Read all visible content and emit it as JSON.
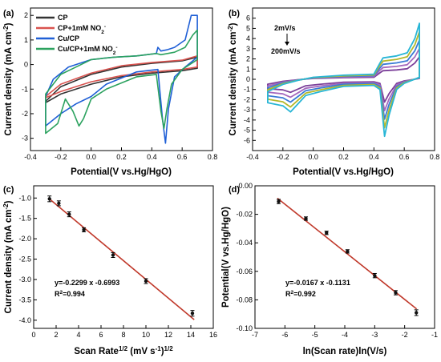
{
  "colors": {
    "axis": "#000000",
    "fit_line": "#c0392b",
    "points": "#111111"
  },
  "chart_data": [
    {
      "panel": "(a)",
      "type": "line",
      "xlabel": "Potential(V vs.Hg/HgO)",
      "ylabel": "Current density (mA cm^-2)",
      "xlim": [
        -0.4,
        0.8
      ],
      "ylim": [
        -3.5,
        2.3
      ],
      "xticks": [
        "-0.4",
        "-0.2",
        "0.0",
        "0.2",
        "0.4",
        "0.6",
        "0.8"
      ],
      "yticks": [
        "-3",
        "-2",
        "-1",
        "0",
        "1",
        "2"
      ],
      "legend_position": "top-left",
      "series": [
        {
          "name": "CP",
          "color": "#333333",
          "x": [
            -0.3,
            -0.2,
            0,
            0.2,
            0.4,
            0.6,
            0.7,
            0.7,
            0.6,
            0.4,
            0.2,
            0,
            -0.2,
            -0.3
          ],
          "y": [
            -1.5,
            -0.9,
            -0.4,
            -0.1,
            0.05,
            0.15,
            0.3,
            -0.15,
            -0.25,
            -0.35,
            -0.5,
            -0.8,
            -1.2,
            -1.55
          ]
        },
        {
          "name": "CP+1mM NO2-",
          "color": "#d9534f",
          "x": [
            -0.3,
            -0.2,
            0,
            0.2,
            0.4,
            0.6,
            0.7,
            0.7,
            0.6,
            0.4,
            0.2,
            0,
            -0.2,
            -0.3
          ],
          "y": [
            -1.3,
            -0.8,
            -0.35,
            -0.05,
            0.08,
            0.18,
            0.35,
            -0.1,
            -0.2,
            -0.3,
            -0.45,
            -0.7,
            -1.1,
            -1.35
          ]
        },
        {
          "name": "Cu/CP",
          "color": "#1f5fd6",
          "x": [
            -0.3,
            -0.25,
            -0.15,
            0,
            0.15,
            0.3,
            0.43,
            0.44,
            0.46,
            0.5,
            0.55,
            0.62,
            0.66,
            0.7,
            0.7,
            0.62,
            0.55,
            0.51,
            0.49,
            0.47,
            0.44,
            0.3,
            0.1,
            0,
            -0.1,
            -0.2,
            -0.3
          ],
          "y": [
            -1.3,
            -0.6,
            -0.1,
            0.2,
            0.3,
            0.35,
            0.45,
            0.7,
            0.55,
            0.6,
            0.7,
            1.0,
            2.0,
            2.0,
            0.3,
            -0.1,
            -0.5,
            -1.8,
            -3.2,
            -2.2,
            -0.2,
            -0.3,
            -0.8,
            -1.3,
            -1.6,
            -2.0,
            -2.5
          ]
        },
        {
          "name": "Cu/CP+1mM NO2-",
          "color": "#2ca25f",
          "x": [
            -0.3,
            -0.2,
            -0.1,
            0,
            0.15,
            0.3,
            0.43,
            0.46,
            0.55,
            0.62,
            0.67,
            0.7,
            0.7,
            0.6,
            0.53,
            0.5,
            0.48,
            0.46,
            0.43,
            0.3,
            0.1,
            0.0,
            -0.05,
            -0.08,
            -0.12,
            -0.17,
            -0.22,
            -0.3
          ],
          "y": [
            -1.2,
            -0.4,
            -0.1,
            0.2,
            0.3,
            0.35,
            0.45,
            0.4,
            0.5,
            0.7,
            1.2,
            1.4,
            0.2,
            -0.2,
            -0.8,
            -1.8,
            -2.6,
            -1.9,
            -0.4,
            -0.5,
            -1.0,
            -1.4,
            -2.2,
            -2.5,
            -1.9,
            -1.4,
            -2.4,
            -2.8
          ]
        }
      ]
    },
    {
      "panel": "(b)",
      "type": "line",
      "xlabel": "Potential(V vs.Hg/HgO)",
      "ylabel": "Current density (mA cm^-2)",
      "xlim": [
        -0.4,
        0.8
      ],
      "ylim": [
        -7,
        7
      ],
      "xticks": [
        "-0.4",
        "-0.2",
        "0.0",
        "0.2",
        "0.4",
        "0.6",
        "0.8"
      ],
      "yticks": [
        "-6",
        "-5",
        "-4",
        "-3",
        "-2",
        "-1",
        "0",
        "1",
        "2",
        "3",
        "4",
        "5",
        "6"
      ],
      "annotation_top": "2mV/s",
      "annotation_bottom": "200mV/s",
      "scan_rate_curves": [
        {
          "color": "#7b3f99",
          "scale": 0.4
        },
        {
          "color": "#a569bd",
          "scale": 0.55
        },
        {
          "color": "#3a7bd5",
          "scale": 0.7
        },
        {
          "color": "#b5b82a",
          "scale": 0.85
        },
        {
          "color": "#29b6d6",
          "scale": 1.0
        }
      ],
      "base_curve": {
        "x": [
          -0.3,
          -0.2,
          -0.1,
          0,
          0.2,
          0.4,
          0.44,
          0.46,
          0.55,
          0.62,
          0.67,
          0.7,
          0.7,
          0.6,
          0.55,
          0.5,
          0.47,
          0.44,
          0.4,
          0.2,
          0.05,
          -0.05,
          -0.1,
          -0.15,
          -0.2,
          -0.3
        ],
        "y": [
          -1.2,
          -0.5,
          -0.1,
          0.2,
          0.4,
          0.5,
          1.6,
          2.1,
          2.3,
          2.6,
          4.0,
          5.5,
          0.2,
          -0.4,
          -1.0,
          -3.5,
          -5.6,
          -1.0,
          -0.6,
          -0.7,
          -1.2,
          -1.6,
          -2.4,
          -3.2,
          -2.6,
          -2.3
        ]
      }
    },
    {
      "panel": "(c)",
      "type": "scatter",
      "xlabel": "Scan Rate^1/2 (mV s^-1)^1/2",
      "ylabel": "Current density (mA cm^-2)",
      "xlim": [
        0,
        16
      ],
      "ylim": [
        -4.2,
        -0.7
      ],
      "xticks": [
        "0",
        "2",
        "4",
        "6",
        "8",
        "10",
        "12",
        "14",
        "16"
      ],
      "yticks": [
        "-4.0",
        "-3.5",
        "-3.0",
        "-2.5",
        "-2.0",
        "-1.5",
        "-1.0"
      ],
      "x": [
        1.41,
        2.24,
        3.16,
        4.47,
        7.07,
        10.0,
        14.14
      ],
      "y": [
        -1.02,
        -1.13,
        -1.4,
        -1.78,
        -2.4,
        -3.04,
        -3.83
      ],
      "yerr": [
        0.07,
        0.06,
        0.06,
        0.05,
        0.06,
        0.06,
        0.07
      ],
      "fit": {
        "slope": -0.2299,
        "intercept": -0.6993,
        "x_range": [
          1.3,
          14.3
        ]
      },
      "equation": "y=-0.2299 x -0.6993",
      "r2": "R^2=0.994"
    },
    {
      "panel": "(d)",
      "type": "scatter",
      "xlabel": "ln(Scan rate)ln(V/s)",
      "ylabel": "Potential(V vs.Hg/HgO)",
      "xlim": [
        -7,
        -1
      ],
      "ylim": [
        -0.1,
        0.0
      ],
      "xticks": [
        "-7",
        "-6",
        "-5",
        "-4",
        "-3",
        "-2",
        "-1"
      ],
      "yticks": [
        "-0.10",
        "-0.08",
        "-0.06",
        "-0.04",
        "-0.02",
        "0.00"
      ],
      "x": [
        -6.21,
        -5.3,
        -4.61,
        -3.91,
        -3.0,
        -2.3,
        -1.61
      ],
      "y": [
        -0.011,
        -0.023,
        -0.033,
        -0.046,
        -0.063,
        -0.075,
        -0.089
      ],
      "yerr": [
        0.0015,
        0.0012,
        0.0012,
        0.0012,
        0.0015,
        0.0015,
        0.002
      ],
      "fit": {
        "slope": -0.0167,
        "intercept": -0.1131,
        "x_range": [
          -6.25,
          -1.6
        ]
      },
      "equation": "y=-0.0167 x -0.1131",
      "r2": "R^2=0.992"
    }
  ]
}
